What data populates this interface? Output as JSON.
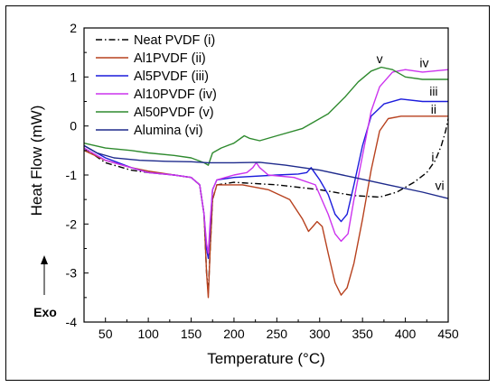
{
  "chart_data": {
    "type": "line",
    "xlabel": "Temperature (°C)",
    "ylabel": "Heat Flow (mW)",
    "xlim": [
      25,
      450
    ],
    "ylim": [
      -4,
      2
    ],
    "xticks": [
      50,
      100,
      150,
      200,
      250,
      300,
      350,
      400,
      450
    ],
    "yticks": [
      -4,
      -3,
      -2,
      -1,
      0,
      1,
      2
    ],
    "grid": false,
    "legend_position": "top-left",
    "exo_label": "Exo",
    "series": [
      {
        "name": "Neat PVDF (i)",
        "tag": "i",
        "color": "#000000",
        "dash": "dashdot",
        "points": [
          [
            25,
            -0.45
          ],
          [
            50,
            -0.75
          ],
          [
            80,
            -0.9
          ],
          [
            100,
            -0.95
          ],
          [
            130,
            -1.0
          ],
          [
            150,
            -1.05
          ],
          [
            160,
            -1.2
          ],
          [
            165,
            -1.8
          ],
          [
            168,
            -3.0
          ],
          [
            170,
            -3.4
          ],
          [
            172,
            -2.6
          ],
          [
            175,
            -1.5
          ],
          [
            180,
            -1.2
          ],
          [
            200,
            -1.15
          ],
          [
            250,
            -1.2
          ],
          [
            300,
            -1.3
          ],
          [
            340,
            -1.42
          ],
          [
            370,
            -1.45
          ],
          [
            390,
            -1.35
          ],
          [
            410,
            -1.15
          ],
          [
            425,
            -0.95
          ],
          [
            435,
            -0.7
          ],
          [
            442,
            -0.4
          ],
          [
            447,
            -0.1
          ],
          [
            450,
            0.15
          ]
        ]
      },
      {
        "name": "Al1PVDF (ii)",
        "tag": "ii",
        "color": "#b7411e",
        "dash": "solid",
        "points": [
          [
            25,
            -0.5
          ],
          [
            50,
            -0.7
          ],
          [
            80,
            -0.85
          ],
          [
            100,
            -0.92
          ],
          [
            130,
            -1.0
          ],
          [
            150,
            -1.05
          ],
          [
            160,
            -1.2
          ],
          [
            165,
            -1.8
          ],
          [
            168,
            -3.0
          ],
          [
            170,
            -3.5
          ],
          [
            172,
            -2.6
          ],
          [
            175,
            -1.5
          ],
          [
            180,
            -1.2
          ],
          [
            210,
            -1.2
          ],
          [
            240,
            -1.3
          ],
          [
            265,
            -1.5
          ],
          [
            280,
            -1.9
          ],
          [
            287,
            -2.15
          ],
          [
            292,
            -2.05
          ],
          [
            297,
            -1.95
          ],
          [
            303,
            -2.05
          ],
          [
            310,
            -2.6
          ],
          [
            318,
            -3.2
          ],
          [
            325,
            -3.45
          ],
          [
            332,
            -3.3
          ],
          [
            340,
            -2.8
          ],
          [
            350,
            -1.9
          ],
          [
            360,
            -0.9
          ],
          [
            370,
            -0.1
          ],
          [
            380,
            0.15
          ],
          [
            395,
            0.2
          ],
          [
            420,
            0.2
          ],
          [
            450,
            0.2
          ]
        ]
      },
      {
        "name": "Al5PVDF (iii)",
        "tag": "iii",
        "color": "#1c1cdc",
        "dash": "solid",
        "points": [
          [
            25,
            -0.4
          ],
          [
            50,
            -0.65
          ],
          [
            80,
            -0.85
          ],
          [
            100,
            -0.95
          ],
          [
            130,
            -1.0
          ],
          [
            150,
            -1.05
          ],
          [
            160,
            -1.2
          ],
          [
            165,
            -1.8
          ],
          [
            168,
            -2.5
          ],
          [
            170,
            -2.7
          ],
          [
            172,
            -2.1
          ],
          [
            175,
            -1.3
          ],
          [
            180,
            -1.1
          ],
          [
            200,
            -1.05
          ],
          [
            250,
            -1.0
          ],
          [
            275,
            -0.98
          ],
          [
            285,
            -0.95
          ],
          [
            290,
            -0.85
          ],
          [
            294,
            -0.95
          ],
          [
            300,
            -1.1
          ],
          [
            310,
            -1.4
          ],
          [
            318,
            -1.8
          ],
          [
            325,
            -1.95
          ],
          [
            332,
            -1.8
          ],
          [
            340,
            -1.2
          ],
          [
            350,
            -0.4
          ],
          [
            360,
            0.2
          ],
          [
            375,
            0.45
          ],
          [
            395,
            0.55
          ],
          [
            420,
            0.5
          ],
          [
            450,
            0.5
          ]
        ]
      },
      {
        "name": "Al10PVDF (iv)",
        "tag": "iv",
        "color": "#cc33ee",
        "dash": "solid",
        "points": [
          [
            25,
            -0.45
          ],
          [
            50,
            -0.7
          ],
          [
            80,
            -0.85
          ],
          [
            100,
            -0.95
          ],
          [
            130,
            -1.0
          ],
          [
            150,
            -1.05
          ],
          [
            160,
            -1.2
          ],
          [
            165,
            -1.8
          ],
          [
            168,
            -2.4
          ],
          [
            170,
            -2.6
          ],
          [
            172,
            -2.0
          ],
          [
            175,
            -1.3
          ],
          [
            180,
            -1.1
          ],
          [
            200,
            -1.0
          ],
          [
            215,
            -0.95
          ],
          [
            222,
            -0.85
          ],
          [
            226,
            -0.75
          ],
          [
            230,
            -0.85
          ],
          [
            240,
            -1.0
          ],
          [
            270,
            -1.05
          ],
          [
            295,
            -1.2
          ],
          [
            310,
            -1.8
          ],
          [
            318,
            -2.2
          ],
          [
            325,
            -2.35
          ],
          [
            333,
            -2.2
          ],
          [
            340,
            -1.5
          ],
          [
            350,
            -0.6
          ],
          [
            360,
            0.3
          ],
          [
            370,
            0.8
          ],
          [
            385,
            1.1
          ],
          [
            400,
            1.15
          ],
          [
            420,
            1.1
          ],
          [
            450,
            1.15
          ]
        ]
      },
      {
        "name": "Al50PVDF (v)",
        "tag": "v",
        "color": "#2e8a2e",
        "dash": "solid",
        "points": [
          [
            25,
            -0.35
          ],
          [
            50,
            -0.45
          ],
          [
            80,
            -0.5
          ],
          [
            100,
            -0.55
          ],
          [
            130,
            -0.6
          ],
          [
            150,
            -0.65
          ],
          [
            165,
            -0.75
          ],
          [
            170,
            -0.8
          ],
          [
            175,
            -0.55
          ],
          [
            185,
            -0.45
          ],
          [
            200,
            -0.35
          ],
          [
            212,
            -0.2
          ],
          [
            218,
            -0.25
          ],
          [
            230,
            -0.3
          ],
          [
            250,
            -0.2
          ],
          [
            280,
            -0.05
          ],
          [
            310,
            0.25
          ],
          [
            330,
            0.6
          ],
          [
            345,
            0.9
          ],
          [
            360,
            1.12
          ],
          [
            372,
            1.2
          ],
          [
            385,
            1.15
          ],
          [
            400,
            1.0
          ],
          [
            420,
            0.95
          ],
          [
            450,
            0.95
          ]
        ]
      },
      {
        "name": "Alumina (vi)",
        "tag": "vi",
        "color": "#1e2a8c",
        "dash": "solid",
        "points": [
          [
            25,
            -0.4
          ],
          [
            40,
            -0.55
          ],
          [
            60,
            -0.65
          ],
          [
            90,
            -0.7
          ],
          [
            120,
            -0.72
          ],
          [
            150,
            -0.73
          ],
          [
            170,
            -0.75
          ],
          [
            200,
            -0.75
          ],
          [
            230,
            -0.74
          ],
          [
            260,
            -0.8
          ],
          [
            300,
            -0.9
          ],
          [
            340,
            -1.05
          ],
          [
            380,
            -1.2
          ],
          [
            420,
            -1.35
          ],
          [
            450,
            -1.48
          ]
        ]
      }
    ],
    "curve_labels": [
      {
        "text": "v",
        "x": 370,
        "y": 1.28
      },
      {
        "text": "iv",
        "x": 422,
        "y": 1.2
      },
      {
        "text": "iii",
        "x": 433,
        "y": 0.62
      },
      {
        "text": "ii",
        "x": 433,
        "y": 0.25
      },
      {
        "text": "i",
        "x": 432,
        "y": -0.72
      },
      {
        "text": "vi",
        "x": 440,
        "y": -1.3
      }
    ]
  }
}
